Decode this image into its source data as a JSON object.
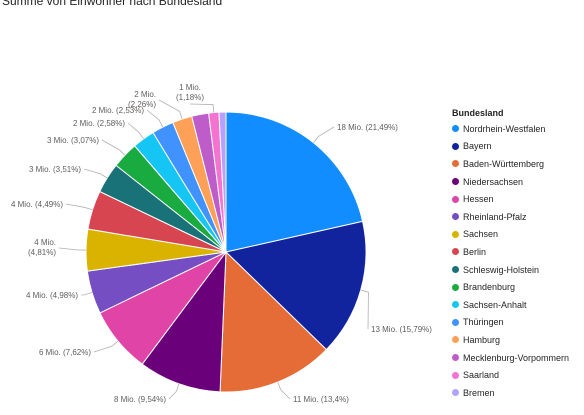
{
  "chart_data": {
    "type": "pie",
    "title": "Summe von Einwohner nach Bundesland",
    "legend_title": "Bundesland",
    "legend_position": "right",
    "slices": [
      {
        "name": "Nordrhein-Westfalen",
        "value": 18,
        "label": "18 Mio. (21,49%)",
        "color": "#118DFF"
      },
      {
        "name": "Bayern",
        "value": 13,
        "label": "13 Mio. (15,79%)",
        "color": "#12239E"
      },
      {
        "name": "Baden-Württemberg",
        "value": 11,
        "label": "11 Mio. (13,4%)",
        "color": "#E66C37"
      },
      {
        "name": "Niedersachsen",
        "value": 8,
        "label": "8 Mio. (9,54%)",
        "color": "#6B007B"
      },
      {
        "name": "Hessen",
        "value": 6,
        "label": "6 Mio. (7,62%)",
        "color": "#E044A7"
      },
      {
        "name": "Rheinland-Pfalz",
        "value": 4,
        "label": "4 Mio. (4,98%)",
        "color": "#744EC2"
      },
      {
        "name": "Sachsen",
        "value": 4,
        "label": "4 Mio. (4,81%)",
        "color": "#D9B300"
      },
      {
        "name": "Berlin",
        "value": 4,
        "label": "4 Mio. (4,49%)",
        "color": "#D64550"
      },
      {
        "name": "Schleswig-Holstein",
        "value": 3,
        "label": "3 Mio. (3,51%)",
        "color": "#197278"
      },
      {
        "name": "Brandenburg",
        "value": 3,
        "label": "3 Mio. (3,07%)",
        "color": "#1AAB40"
      },
      {
        "name": "Sachsen-Anhalt",
        "value": 2,
        "label": "2 Mio. (2,58%)",
        "color": "#15C6F4"
      },
      {
        "name": "Thüringen",
        "value": 2,
        "label": "2 Mio. (2,53%)",
        "color": "#4092FF"
      },
      {
        "name": "Hamburg",
        "value": 2,
        "label": "2 Mio. (2,26%)",
        "color": "#FFA058"
      },
      {
        "name": "Mecklenburg-Vorpommern",
        "value": 2,
        "label": "",
        "color": "#BE5DC9"
      },
      {
        "name": "Saarland",
        "value": 1,
        "label": "1 Mio. (1,18%)",
        "color": "#F472D0"
      },
      {
        "name": "Bremen",
        "value": 1,
        "label": "",
        "color": "#B5A1FF"
      }
    ],
    "percentages": [
      21.49,
      15.79,
      13.4,
      9.54,
      7.62,
      4.98,
      4.81,
      4.49,
      3.51,
      3.07,
      2.58,
      2.53,
      2.26,
      1.96,
      1.18,
      0.8
    ]
  }
}
